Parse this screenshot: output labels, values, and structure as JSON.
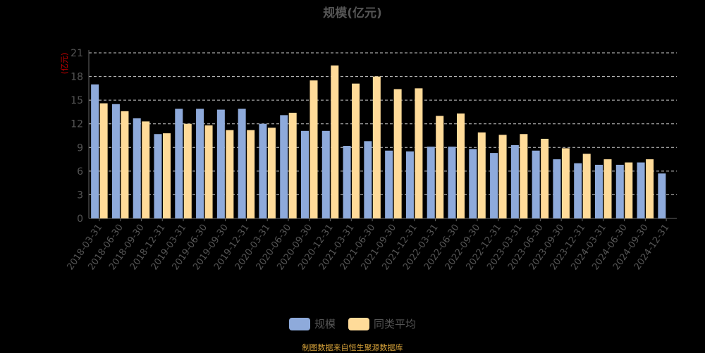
{
  "title": "规模(亿元)",
  "source_note": "制图数据来自恒生聚源数据库",
  "chart_data": {
    "type": "bar",
    "title": "规模(亿元)",
    "ylabel": "(亿元)",
    "ylim": [
      0,
      21
    ],
    "yticks": [
      0,
      3,
      6,
      9,
      12,
      15,
      18,
      21
    ],
    "grid": true,
    "legend_position": "bottom",
    "categories": [
      "2018-03-31",
      "2018-06-30",
      "2018-09-30",
      "2018-12-31",
      "2019-03-31",
      "2019-06-30",
      "2019-09-30",
      "2019-12-31",
      "2020-03-31",
      "2020-06-30",
      "2020-09-30",
      "2020-12-31",
      "2021-03-31",
      "2021-06-30",
      "2021-09-30",
      "2021-12-31",
      "2022-03-31",
      "2022-06-30",
      "2022-09-30",
      "2022-12-31",
      "2023-03-31",
      "2023-06-30",
      "2023-09-30",
      "2023-12-31",
      "2024-03-31",
      "2024-06-30",
      "2024-09-30",
      "2024-12-31"
    ],
    "series": [
      {
        "name": "规模",
        "color": "#8eaadb",
        "values": [
          17.0,
          14.5,
          12.7,
          10.7,
          13.9,
          13.9,
          13.8,
          13.9,
          12.0,
          13.1,
          11.1,
          11.1,
          9.2,
          9.8,
          8.6,
          8.5,
          9.1,
          9.1,
          8.8,
          8.3,
          9.3,
          8.6,
          7.5,
          7.0,
          6.8,
          6.8,
          7.1,
          5.7
        ]
      },
      {
        "name": "同类平均",
        "color": "#ffdb99",
        "values": [
          14.6,
          13.6,
          12.3,
          10.8,
          12.0,
          11.8,
          11.2,
          11.2,
          11.5,
          13.4,
          17.5,
          19.4,
          17.1,
          18.0,
          16.4,
          16.5,
          13.0,
          13.3,
          10.9,
          10.6,
          10.7,
          10.1,
          8.9,
          8.2,
          7.5,
          7.1,
          7.5,
          null
        ]
      }
    ]
  }
}
